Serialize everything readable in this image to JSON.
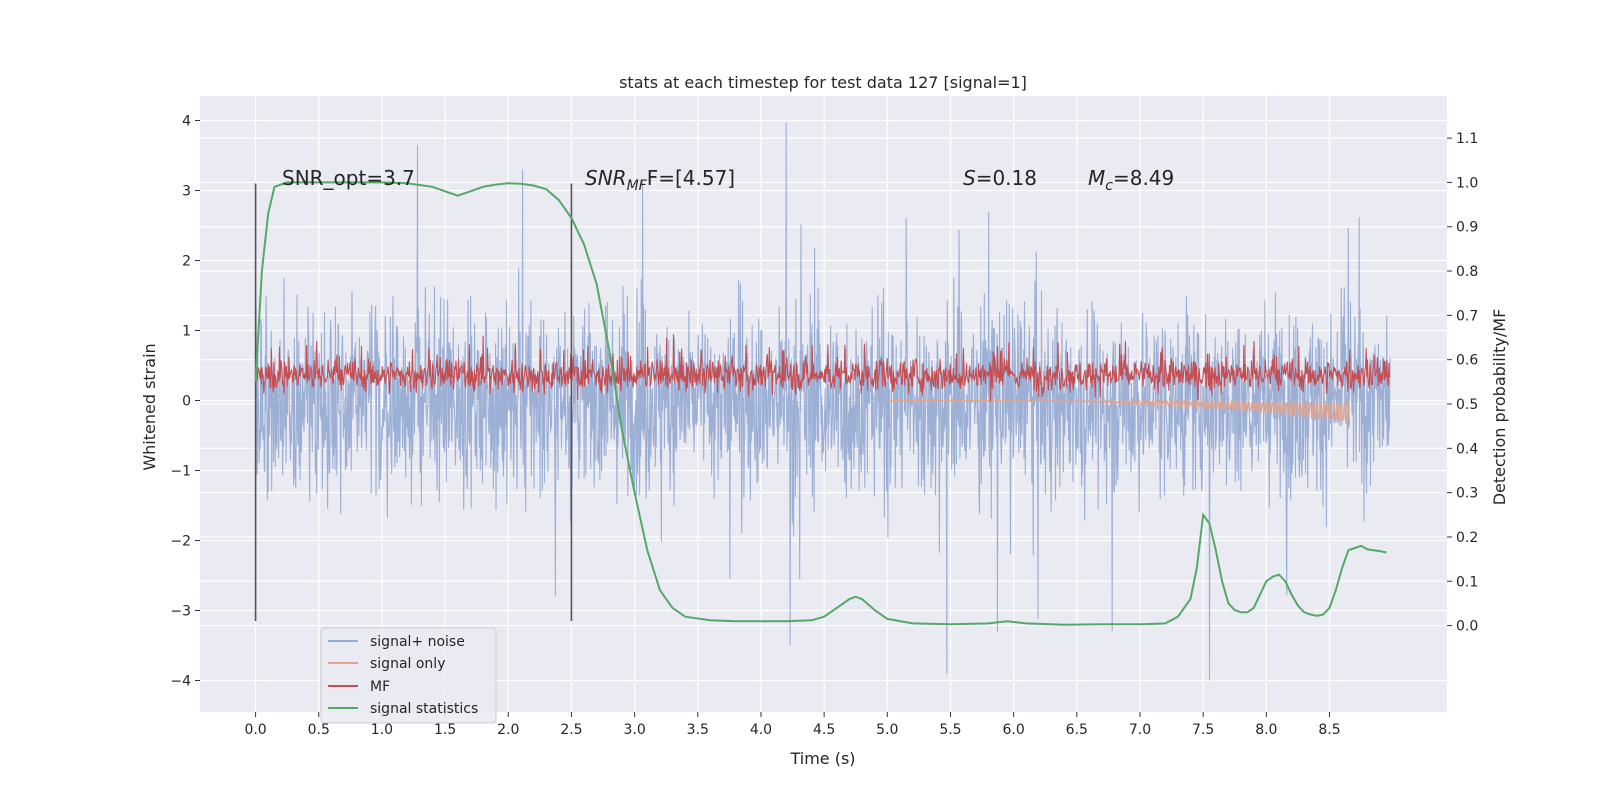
{
  "chart_data": {
    "type": "line",
    "title": "stats at each timestep for test data 127 [signal=1]",
    "xlabel": "Time (s)",
    "ylabel_left": "Whitened strain",
    "ylabel_right": "Detection probability/MF",
    "xlim": [
      -0.44,
      9.43
    ],
    "ylim_left": [
      -4.45,
      4.35
    ],
    "ylim_right": [
      -0.195,
      1.195
    ],
    "x_ticks": [
      "0.0",
      "0.5",
      "1.0",
      "1.5",
      "2.0",
      "2.5",
      "3.0",
      "3.5",
      "4.0",
      "4.5",
      "5.0",
      "5.5",
      "6.0",
      "6.5",
      "7.0",
      "7.5",
      "8.0",
      "8.5"
    ],
    "y_ticks_left": [
      "4",
      "3",
      "2",
      "1",
      "0",
      "−1",
      "−2",
      "−3",
      "−4"
    ],
    "y_ticks_right": [
      "1.1",
      "1.0",
      "0.9",
      "0.8",
      "0.7",
      "0.6",
      "0.5",
      "0.4",
      "0.3",
      "0.2",
      "0.1",
      "0.0"
    ],
    "grid": true,
    "background": "#eaeaf2",
    "annotations": {
      "snr_opt": "SNR_opt=3.7",
      "snr_mf_prefix": "SNR",
      "snr_mf_sub": "MF",
      "snr_mf_suffix": "F=[4.57]",
      "s_symbol": "S",
      "s_value": "=0.18",
      "mc_symbol": "M",
      "mc_sub": "c",
      "mc_value": "=8.49"
    },
    "vertical_markers": [
      0.0,
      2.5
    ],
    "series": [
      {
        "name": "signal+ noise",
        "color": "#98acd3",
        "axis": "left",
        "description_envelope": {
          "x_range": [
            0.0,
            8.98
          ],
          "typical_amplitude": 1.9,
          "peaks": [
            [
              1.28,
              3.65
            ],
            [
              4.2,
              3.97
            ],
            [
              5.47,
              -3.9
            ],
            [
              7.55,
              -4.0
            ],
            [
              5.87,
              -3.3
            ],
            [
              4.23,
              -3.5
            ]
          ]
        }
      },
      {
        "name": "signal only",
        "color": "#e5a38a",
        "axis": "left",
        "chirp": {
          "start": 5.0,
          "end": 8.66,
          "max_amplitude": -0.35
        }
      },
      {
        "name": "MF",
        "color": "#c44e52",
        "axis": "right",
        "baseline": 0.565,
        "band_low": 0.5,
        "band_high": 0.64
      },
      {
        "name": "signal statistics",
        "color": "#55a868",
        "axis": "right",
        "x": [
          0.0,
          0.05,
          0.1,
          0.15,
          0.25,
          0.4,
          0.6,
          0.8,
          1.0,
          1.2,
          1.4,
          1.5,
          1.6,
          1.7,
          1.8,
          1.9,
          2.0,
          2.1,
          2.2,
          2.3,
          2.4,
          2.5,
          2.6,
          2.7,
          2.8,
          2.9,
          3.0,
          3.1,
          3.2,
          3.3,
          3.4,
          3.6,
          3.8,
          4.0,
          4.2,
          4.4,
          4.5,
          4.6,
          4.7,
          4.75,
          4.8,
          4.9,
          5.0,
          5.2,
          5.5,
          5.8,
          5.95,
          6.1,
          6.4,
          6.7,
          7.0,
          7.2,
          7.3,
          7.4,
          7.45,
          7.5,
          7.55,
          7.6,
          7.65,
          7.7,
          7.75,
          7.8,
          7.85,
          7.9,
          7.95,
          8.0,
          8.05,
          8.1,
          8.15,
          8.2,
          8.25,
          8.3,
          8.35,
          8.4,
          8.45,
          8.5,
          8.55,
          8.6,
          8.65,
          8.7,
          8.75,
          8.8,
          8.85,
          8.9,
          8.95
        ],
        "values": [
          0.55,
          0.8,
          0.93,
          0.99,
          1.0,
          1.0,
          1.0,
          1.0,
          1.0,
          0.998,
          0.99,
          0.98,
          0.97,
          0.98,
          0.99,
          0.995,
          0.998,
          0.997,
          0.993,
          0.985,
          0.96,
          0.92,
          0.86,
          0.77,
          0.62,
          0.44,
          0.3,
          0.17,
          0.08,
          0.04,
          0.02,
          0.012,
          0.01,
          0.01,
          0.01,
          0.012,
          0.02,
          0.04,
          0.06,
          0.065,
          0.06,
          0.035,
          0.015,
          0.005,
          0.003,
          0.005,
          0.01,
          0.005,
          0.002,
          0.003,
          0.003,
          0.005,
          0.02,
          0.06,
          0.13,
          0.25,
          0.23,
          0.17,
          0.1,
          0.05,
          0.035,
          0.03,
          0.03,
          0.04,
          0.07,
          0.1,
          0.11,
          0.115,
          0.1,
          0.07,
          0.045,
          0.03,
          0.025,
          0.022,
          0.025,
          0.04,
          0.08,
          0.13,
          0.17,
          0.175,
          0.18,
          0.172,
          0.17,
          0.168,
          0.165
        ]
      }
    ],
    "legend": {
      "location": "lower-left",
      "entries": [
        "signal+ noise",
        "signal only",
        "MF",
        "signal statistics"
      ]
    }
  }
}
